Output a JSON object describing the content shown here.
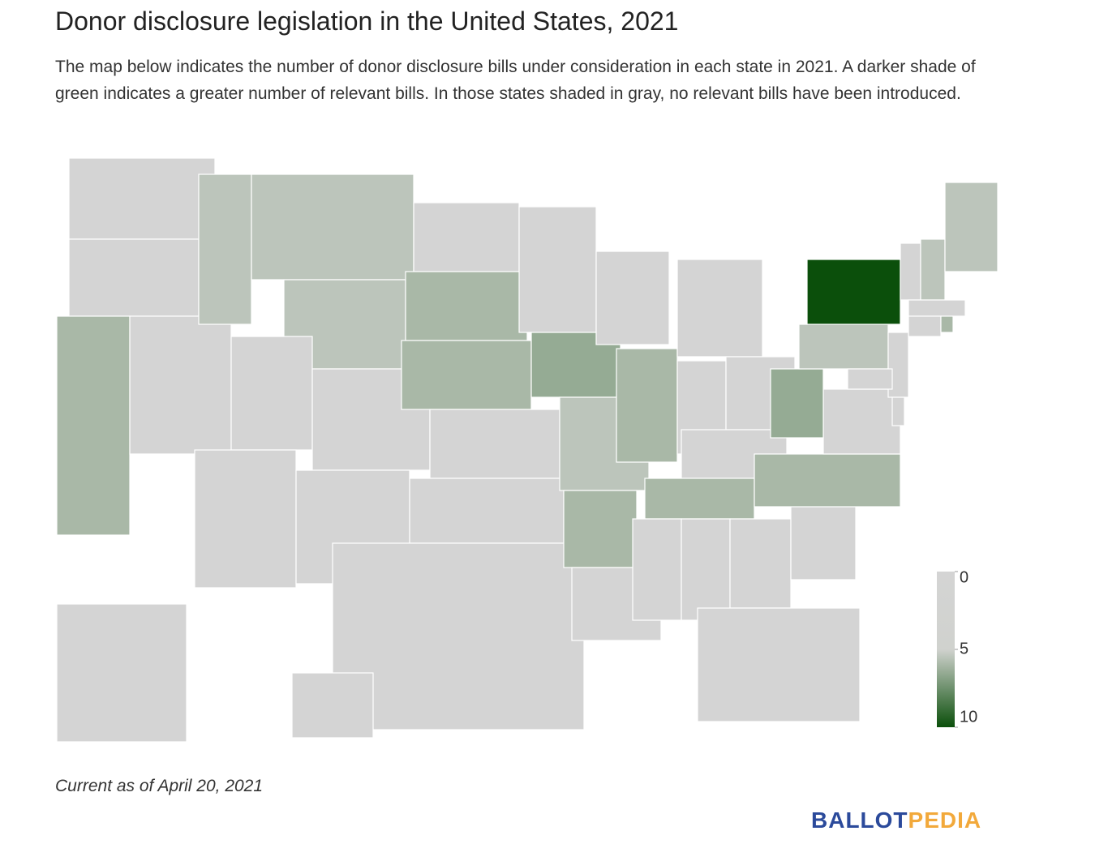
{
  "header": {
    "title": "Donor disclosure legislation in the United States, 2021",
    "subtitle": "The map below indicates the number of donor disclosure bills under consideration in each state in 2021. A darker shade of green indicates a greater number of relevant bills. In those states shaded in gray, no relevant bills have been introduced."
  },
  "chart_data": {
    "type": "choropleth",
    "values": [
      0,
      0,
      6,
      0,
      5.5,
      5.5,
      5.5,
      0,
      0,
      0,
      0,
      0,
      6,
      6,
      0,
      0,
      0,
      0,
      6.5,
      5.5,
      6,
      0,
      0,
      6,
      0,
      0,
      0,
      0,
      6,
      0,
      0,
      0,
      0,
      0,
      6,
      0,
      6.5,
      5.5,
      10,
      0,
      0,
      0,
      0,
      5.5,
      5.5,
      0,
      0,
      6,
      0,
      0
    ],
    "scale": [
      {
        "value": 0,
        "color": "#d4d4d4"
      },
      {
        "value": 5,
        "color": "#d0d2ce"
      },
      {
        "value": 10,
        "color": "#0b4f0b"
      }
    ]
  },
  "footer": {
    "note": "Current as of April 20, 2021",
    "logo_a": "BALLOT",
    "logo_b": "PEDIA"
  }
}
